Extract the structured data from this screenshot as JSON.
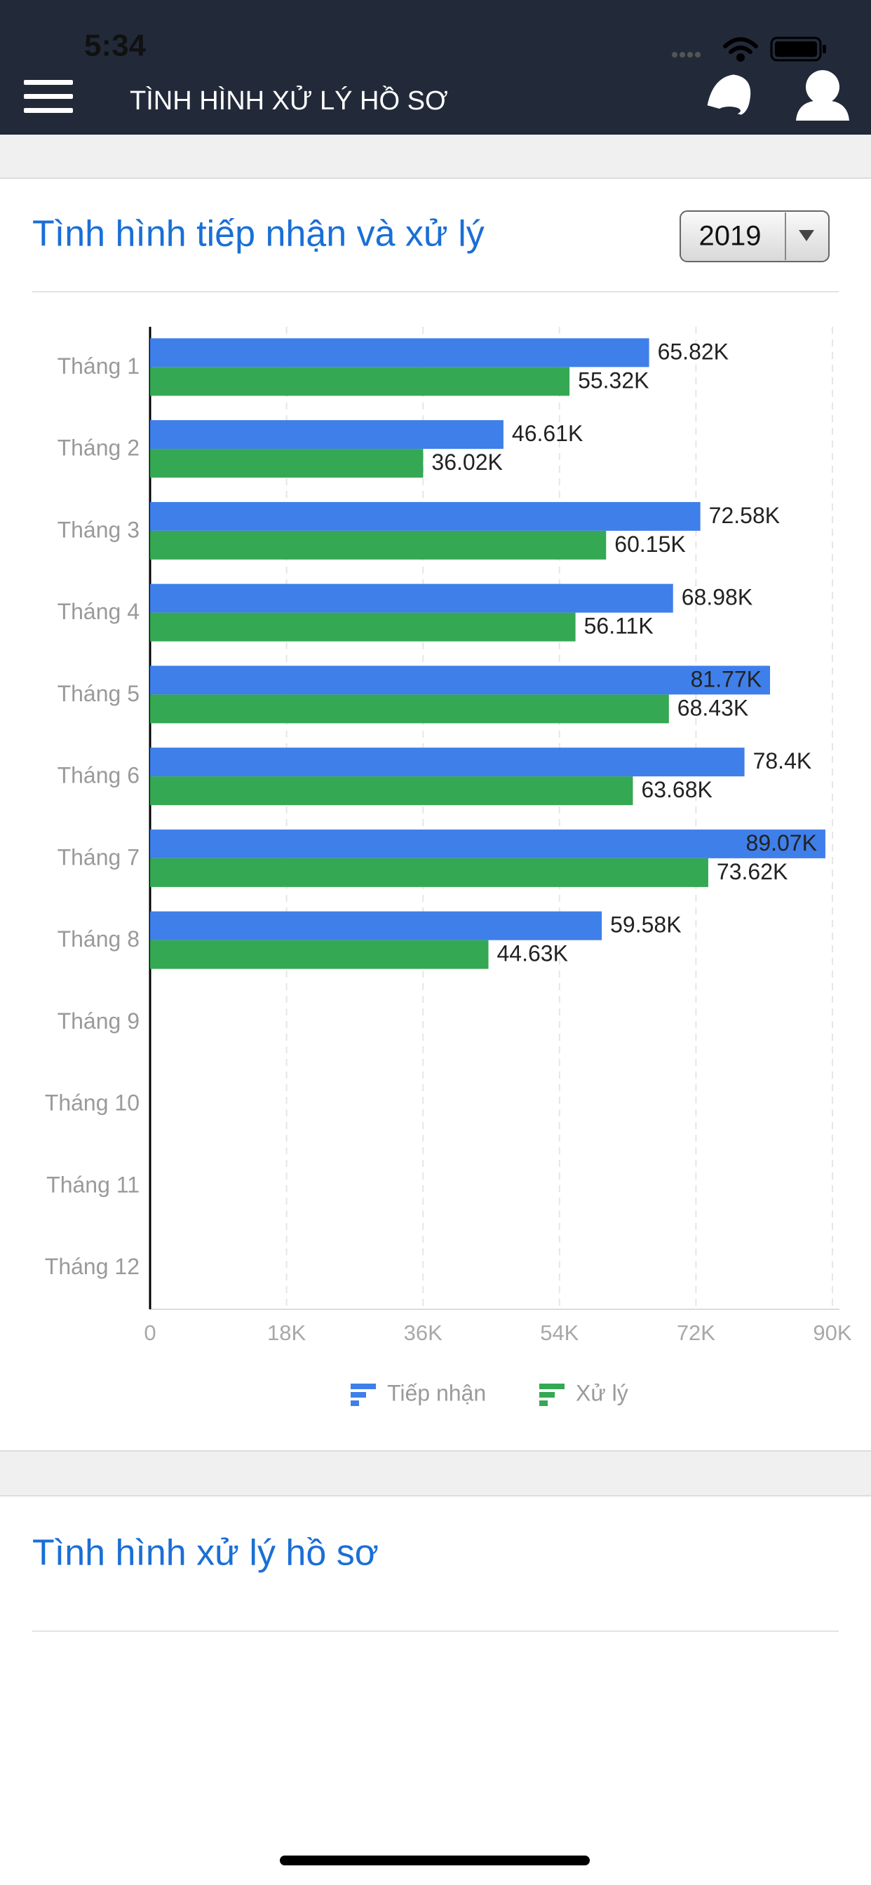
{
  "status_bar": {
    "time": "5:34"
  },
  "header": {
    "title": "TÌNH HÌNH XỬ LÝ HỒ SƠ"
  },
  "card1": {
    "title": "Tình hình tiếp nhận và xử lý",
    "year": "2019"
  },
  "chart_data": {
    "type": "bar",
    "orientation": "horizontal",
    "categories": [
      "Tháng 1",
      "Tháng 2",
      "Tháng 3",
      "Tháng 4",
      "Tháng 5",
      "Tháng 6",
      "Tháng 7",
      "Tháng 8",
      "Tháng 9",
      "Tháng 10",
      "Tháng 11",
      "Tháng 12"
    ],
    "series": [
      {
        "name": "Tiếp nhận",
        "color": "#3f7fea",
        "values": [
          65820,
          46610,
          72580,
          68980,
          81770,
          78400,
          89070,
          59580,
          null,
          null,
          null,
          null
        ],
        "value_labels": [
          "65.82K",
          "46.61K",
          "72.58K",
          "68.98K",
          "81.77K",
          "78.4K",
          "89.07K",
          "59.58K",
          null,
          null,
          null,
          null
        ]
      },
      {
        "name": "Xử lý",
        "color": "#34a853",
        "values": [
          55320,
          36020,
          60150,
          56110,
          68430,
          63680,
          73620,
          44630,
          null,
          null,
          null,
          null
        ],
        "value_labels": [
          "55.32K",
          "36.02K",
          "60.15K",
          "56.11K",
          "68.43K",
          "63.68K",
          "73.62K",
          "44.63K",
          null,
          null,
          null,
          null
        ]
      }
    ],
    "xlim": [
      0,
      90000
    ],
    "xticks": [
      0,
      {
        "value": 18000,
        "label": "18K"
      },
      {
        "value": 36000,
        "label": "36K"
      },
      {
        "value": 54000,
        "label": "54K"
      },
      {
        "value": 72000,
        "label": "72K"
      },
      {
        "value": 90000,
        "label": "90K"
      }
    ],
    "grid": true
  },
  "card2": {
    "title": "Tình hình xử lý hồ sơ"
  }
}
